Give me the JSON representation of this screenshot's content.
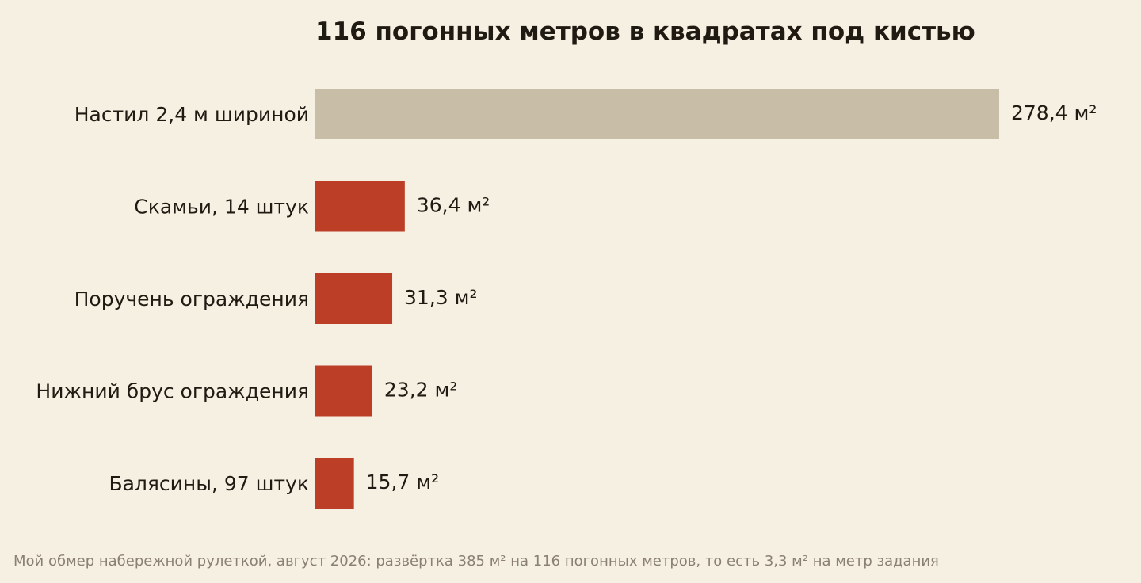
{
  "chart_data": {
    "type": "bar",
    "orientation": "horizontal",
    "title": "116 погонных метров в квадратах под кистью",
    "categories": [
      "Настил 2,4 м шириной",
      "Скамьи, 14 штук",
      "Поручень ограждения",
      "Нижний брус ограждения",
      "Балясины, 97 штук"
    ],
    "values": [
      278.4,
      36.4,
      31.3,
      23.2,
      15.7
    ],
    "value_labels": [
      "278,4 м²",
      "36,4 м²",
      "31,3 м²",
      "23,2 м²",
      "15,7 м²"
    ],
    "xlim": [
      0,
      278.4
    ],
    "grid": false,
    "legend": "none",
    "axes_visible": false,
    "colors": {
      "highlight": "#c8bea8",
      "default": "#bc3e27",
      "background": "#f6f0e3",
      "text": "#1f1b12",
      "footnote": "#8a8172"
    },
    "bar_colors": [
      "highlight",
      "default",
      "default",
      "default",
      "default"
    ]
  },
  "footnote": "Мой обмер набережной рулеткой, август 2026: развёртка 385 м² на 116 погонных метров, то есть 3,3 м² на метр задания"
}
